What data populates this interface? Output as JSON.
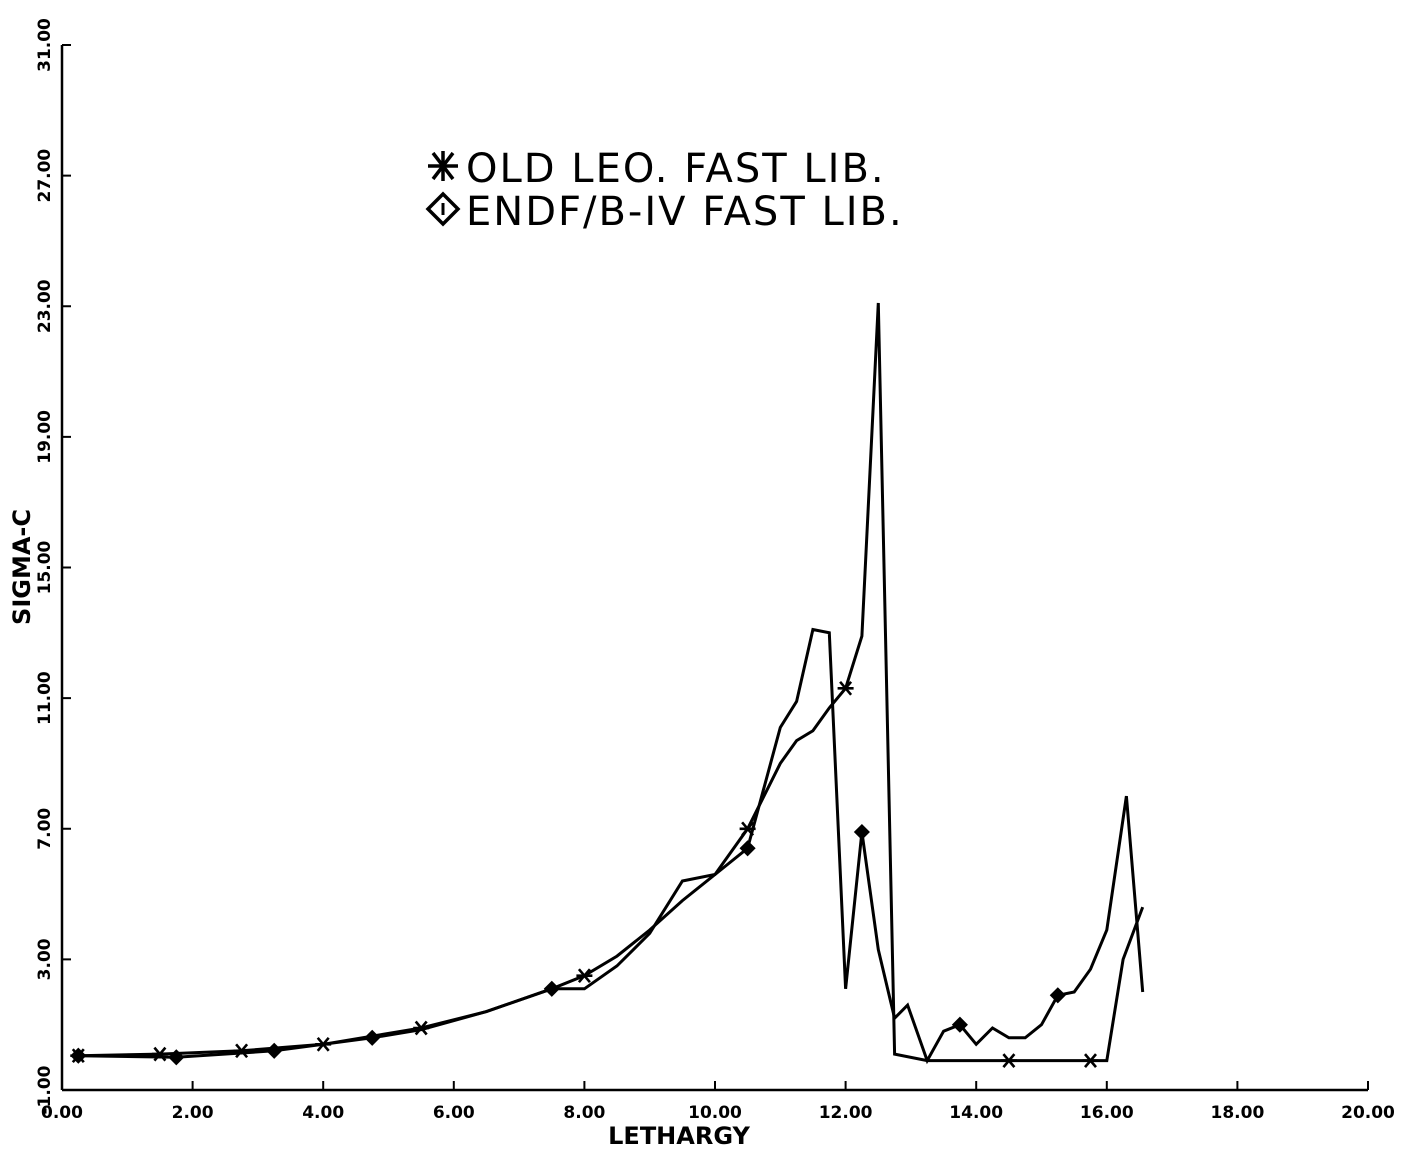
{
  "chart_data": {
    "type": "line",
    "title": "",
    "xlabel": "LETHARGY",
    "ylabel": "SIGMA-C",
    "xlim": [
      0,
      20
    ],
    "ylim": [
      -1,
      31
    ],
    "x_ticks": [
      "0.00",
      "2.00",
      "4.00",
      "6.00",
      "8.00",
      "10.00",
      "12.00",
      "14.00",
      "16.00",
      "18.00",
      "20.00"
    ],
    "y_ticks": [
      "-1.00",
      "3.00",
      "7.00",
      "11.00",
      "15.00",
      "19.00",
      "23.00",
      "27.00",
      "31.00"
    ],
    "grid": false,
    "legend_position": "top-center",
    "colors": {
      "line": "#000000",
      "background": "#ffffff"
    },
    "series": [
      {
        "name": "OLD LEO. FAST LIB.",
        "marker": "asterisk",
        "x": [
          0.25,
          1.5,
          2.75,
          4.0,
          5.5,
          6.5,
          7.5,
          8.0,
          8.5,
          9.0,
          9.5,
          10.0,
          10.5,
          11.0,
          11.25,
          11.5,
          11.75,
          12.0,
          12.25,
          12.5,
          12.75,
          13.25,
          14.0,
          14.5,
          15.0,
          15.5,
          15.75,
          16.0,
          16.25,
          16.55
        ],
        "y": [
          0.05,
          0.1,
          0.2,
          0.4,
          0.9,
          1.4,
          2.1,
          2.5,
          3.1,
          3.9,
          4.8,
          5.6,
          7.0,
          9.0,
          9.7,
          10.0,
          10.7,
          11.3,
          12.9,
          23.1,
          0.1,
          -0.1,
          -0.1,
          -0.1,
          -0.1,
          -0.1,
          -0.1,
          -0.1,
          3.0,
          4.6
        ],
        "marker_points": [
          0,
          1,
          2,
          3,
          4,
          7,
          12,
          17,
          23,
          26
        ]
      },
      {
        "name": "ENDF/B-IV FAST LIB.",
        "marker": "diamond",
        "x": [
          0.25,
          1.75,
          3.25,
          4.75,
          5.5,
          6.5,
          7.5,
          8.0,
          8.5,
          9.0,
          9.5,
          10.0,
          10.5,
          11.0,
          11.25,
          11.5,
          11.75,
          12.0,
          12.25,
          12.5,
          12.75,
          12.95,
          13.25,
          13.5,
          13.75,
          14.0,
          14.25,
          14.5,
          14.75,
          15.0,
          15.25,
          15.5,
          15.75,
          16.0,
          16.3,
          16.55
        ],
        "y": [
          0.05,
          0.0,
          0.2,
          0.6,
          0.85,
          1.4,
          2.1,
          2.1,
          2.8,
          3.8,
          5.4,
          5.6,
          6.4,
          10.1,
          10.9,
          13.1,
          13.0,
          2.1,
          6.9,
          3.3,
          1.2,
          1.6,
          -0.1,
          0.8,
          1.0,
          0.4,
          0.9,
          0.6,
          0.6,
          1.0,
          1.9,
          2.0,
          2.7,
          3.9,
          8.0,
          2.0
        ],
        "marker_points": [
          0,
          1,
          2,
          3,
          6,
          12,
          18,
          24,
          30
        ]
      }
    ]
  }
}
